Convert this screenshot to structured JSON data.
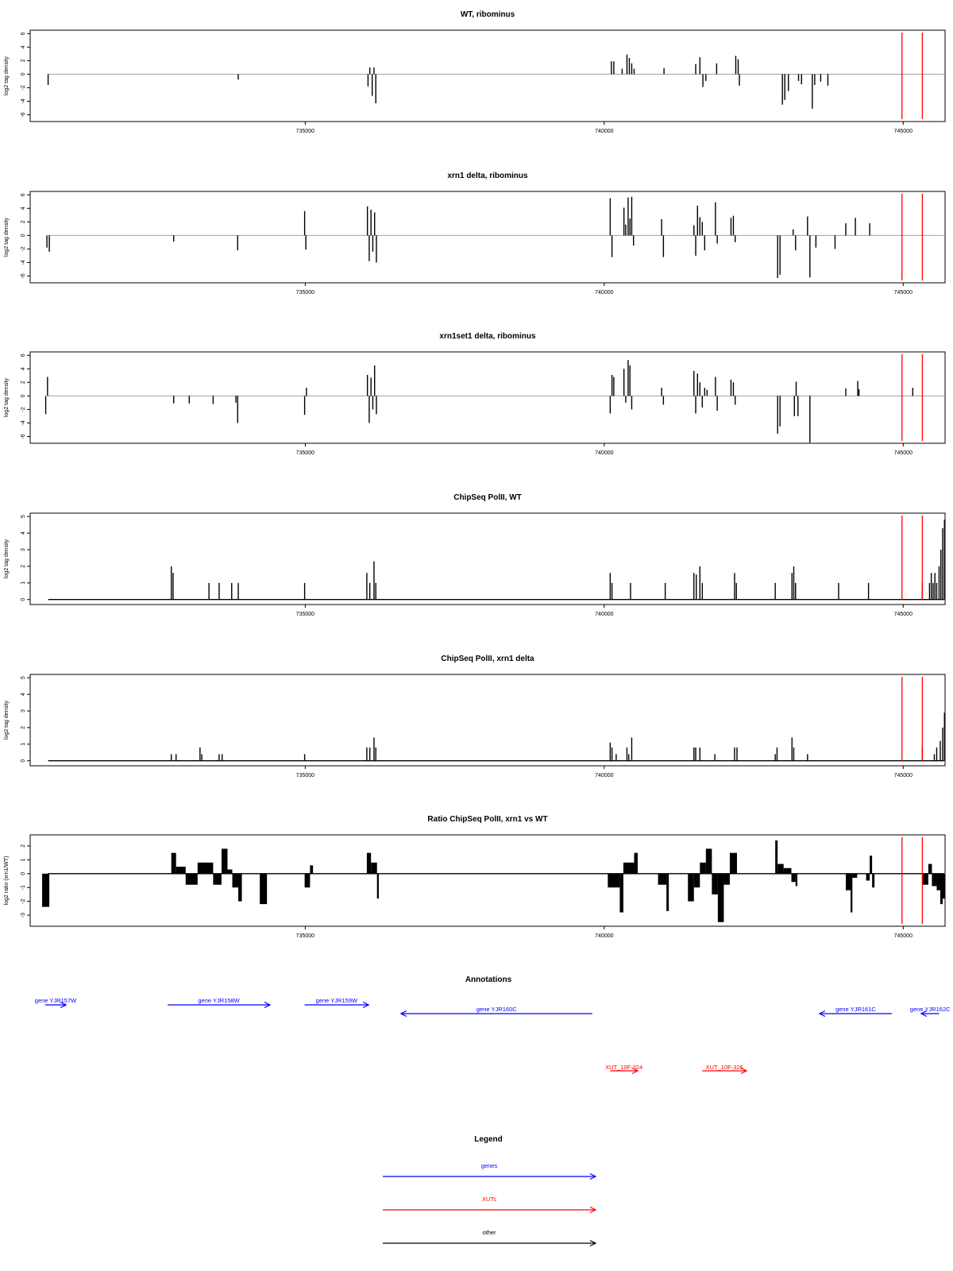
{
  "chart_data": [
    {
      "type": "bar",
      "title": "WT, ribominus",
      "xlabel": "",
      "ylabel": "log2 tag density",
      "xlim": [
        730400,
        745700
      ],
      "ylim": [
        -7,
        6.5
      ],
      "xticks": [
        735000,
        740000,
        745000
      ],
      "yticks": [
        -6,
        -4,
        -2,
        0,
        2,
        4,
        6
      ],
      "markers": [
        744980,
        745320
      ],
      "bars": [
        [
          730700,
          -1.6
        ],
        [
          733880,
          -0.8
        ],
        [
          736050,
          -1.8
        ],
        [
          736080,
          1.0
        ],
        [
          736120,
          -3.2
        ],
        [
          736150,
          1.0
        ],
        [
          736180,
          -4.3
        ],
        [
          740120,
          1.9
        ],
        [
          740160,
          1.9
        ],
        [
          740300,
          0.8
        ],
        [
          740380,
          2.9
        ],
        [
          740420,
          2.4
        ],
        [
          740460,
          1.6
        ],
        [
          740500,
          0.8
        ],
        [
          741000,
          0.9
        ],
        [
          741530,
          1.5
        ],
        [
          741600,
          2.5
        ],
        [
          741650,
          -1.9
        ],
        [
          741700,
          -1.0
        ],
        [
          741880,
          1.6
        ],
        [
          742200,
          2.7
        ],
        [
          742240,
          2.2
        ],
        [
          742260,
          -1.7
        ],
        [
          742980,
          -4.5
        ],
        [
          743020,
          -3.8
        ],
        [
          743080,
          -2.5
        ],
        [
          743250,
          -1.0
        ],
        [
          743300,
          -1.5
        ],
        [
          743480,
          -5.1
        ],
        [
          743520,
          -1.6
        ],
        [
          743620,
          -1.1
        ],
        [
          743740,
          -1.7
        ]
      ]
    },
    {
      "type": "bar",
      "title": "xrn1 delta, ribominus",
      "xlabel": "",
      "ylabel": "log2 tag density",
      "xlim": [
        730400,
        745700
      ],
      "ylim": [
        -7,
        6.5
      ],
      "xticks": [
        735000,
        740000,
        745000
      ],
      "yticks": [
        -6,
        -4,
        -2,
        0,
        2,
        4,
        6
      ],
      "markers": [
        744980,
        745320
      ],
      "bars": [
        [
          730680,
          -1.8
        ],
        [
          730720,
          -2.4
        ],
        [
          732800,
          -0.9
        ],
        [
          733870,
          -2.2
        ],
        [
          734990,
          3.6
        ],
        [
          735010,
          -2.1
        ],
        [
          736040,
          4.3
        ],
        [
          736070,
          -3.8
        ],
        [
          736100,
          3.8
        ],
        [
          736130,
          -2.4
        ],
        [
          736160,
          3.4
        ],
        [
          736190,
          -4.0
        ],
        [
          740100,
          5.5
        ],
        [
          740130,
          -3.2
        ],
        [
          740330,
          4.1
        ],
        [
          740360,
          1.6
        ],
        [
          740400,
          5.6
        ],
        [
          740430,
          2.5
        ],
        [
          740460,
          5.7
        ],
        [
          740490,
          -1.5
        ],
        [
          740960,
          2.4
        ],
        [
          740990,
          -3.2
        ],
        [
          741500,
          1.5
        ],
        [
          741530,
          -3.0
        ],
        [
          741560,
          4.4
        ],
        [
          741600,
          2.7
        ],
        [
          741640,
          2.0
        ],
        [
          741680,
          -2.2
        ],
        [
          741860,
          4.9
        ],
        [
          741890,
          -1.2
        ],
        [
          742120,
          2.6
        ],
        [
          742160,
          2.9
        ],
        [
          742190,
          -1.0
        ],
        [
          742900,
          -6.3
        ],
        [
          742940,
          -5.8
        ],
        [
          743160,
          0.9
        ],
        [
          743200,
          -2.2
        ],
        [
          743400,
          2.8
        ],
        [
          743440,
          -6.2
        ],
        [
          743540,
          -1.8
        ],
        [
          743860,
          -2.0
        ],
        [
          744040,
          1.8
        ],
        [
          744200,
          2.6
        ],
        [
          744440,
          1.8
        ]
      ]
    },
    {
      "type": "bar",
      "title": "xrn1set1 delta, ribominus",
      "xlabel": "",
      "ylabel": "log2 tag density",
      "xlim": [
        730400,
        745700
      ],
      "ylim": [
        -7,
        6.5
      ],
      "xticks": [
        735000,
        740000,
        745000
      ],
      "yticks": [
        -6,
        -4,
        -2,
        0,
        2,
        4,
        6
      ],
      "markers": [
        744980,
        745320
      ],
      "bars": [
        [
          730660,
          -2.7
        ],
        [
          730690,
          2.8
        ],
        [
          732800,
          -1.1
        ],
        [
          733060,
          -1.1
        ],
        [
          733460,
          -1.2
        ],
        [
          733840,
          -1.0
        ],
        [
          733870,
          -4.0
        ],
        [
          734990,
          -2.8
        ],
        [
          735020,
          1.2
        ],
        [
          736040,
          3.1
        ],
        [
          736070,
          -4.0
        ],
        [
          736100,
          2.7
        ],
        [
          736130,
          -2.0
        ],
        [
          736160,
          4.5
        ],
        [
          736190,
          -2.7
        ],
        [
          740100,
          -2.6
        ],
        [
          740130,
          3.1
        ],
        [
          740160,
          2.8
        ],
        [
          740330,
          4.0
        ],
        [
          740360,
          -1.0
        ],
        [
          740400,
          5.3
        ],
        [
          740430,
          4.5
        ],
        [
          740460,
          -2.0
        ],
        [
          740960,
          1.2
        ],
        [
          740990,
          -1.3
        ],
        [
          741500,
          3.7
        ],
        [
          741530,
          -2.6
        ],
        [
          741560,
          3.3
        ],
        [
          741600,
          2.0
        ],
        [
          741640,
          -1.7
        ],
        [
          741680,
          1.2
        ],
        [
          741720,
          0.9
        ],
        [
          741860,
          2.8
        ],
        [
          741890,
          -2.2
        ],
        [
          742120,
          2.4
        ],
        [
          742160,
          2.0
        ],
        [
          742190,
          -1.3
        ],
        [
          742900,
          -5.6
        ],
        [
          742940,
          -4.5
        ],
        [
          743180,
          -3.0
        ],
        [
          743210,
          2.1
        ],
        [
          743240,
          -3.0
        ],
        [
          743440,
          -6.9
        ],
        [
          744040,
          1.1
        ],
        [
          744240,
          2.2
        ],
        [
          744260,
          1.0
        ],
        [
          745160,
          1.2
        ]
      ]
    },
    {
      "type": "bar",
      "title": "ChipSeq PolII, WT",
      "xlabel": "",
      "ylabel": "log2 tag density",
      "xlim": [
        730400,
        745700
      ],
      "ylim": [
        -0.3,
        5.2
      ],
      "xticks": [
        735000,
        740000,
        745000
      ],
      "yticks": [
        0,
        1,
        2,
        3,
        4,
        5
      ],
      "markers": [
        744980,
        745320
      ],
      "bars": [
        [
          732760,
          2.0
        ],
        [
          732790,
          1.6
        ],
        [
          733390,
          1.0
        ],
        [
          733560,
          1.0
        ],
        [
          733770,
          1.0
        ],
        [
          733880,
          1.0
        ],
        [
          734990,
          1.0
        ],
        [
          736030,
          1.6
        ],
        [
          736080,
          1.0
        ],
        [
          736150,
          2.3
        ],
        [
          736180,
          1.0
        ],
        [
          740100,
          1.6
        ],
        [
          740130,
          1.0
        ],
        [
          740440,
          1.0
        ],
        [
          741020,
          1.0
        ],
        [
          741500,
          1.6
        ],
        [
          741540,
          1.5
        ],
        [
          741600,
          2.0
        ],
        [
          741640,
          1.0
        ],
        [
          742180,
          1.6
        ],
        [
          742210,
          1.0
        ],
        [
          742860,
          1.0
        ],
        [
          743140,
          1.6
        ],
        [
          743170,
          2.0
        ],
        [
          743200,
          1.0
        ],
        [
          743920,
          1.0
        ],
        [
          744420,
          1.0
        ],
        [
          745320,
          1.0
        ],
        [
          745440,
          1.0
        ],
        [
          745470,
          1.6
        ],
        [
          745500,
          1.0
        ],
        [
          745530,
          1.6
        ],
        [
          745560,
          1.0
        ],
        [
          745600,
          2.0
        ],
        [
          745630,
          3.0
        ],
        [
          745660,
          4.3
        ],
        [
          745690,
          4.8
        ]
      ]
    },
    {
      "type": "bar",
      "title": "ChipSeq PolII, xrn1 delta",
      "xlabel": "",
      "ylabel": "log2 tag density",
      "xlim": [
        730400,
        745700
      ],
      "ylim": [
        -0.3,
        5.2
      ],
      "xticks": [
        735000,
        740000,
        745000
      ],
      "yticks": [
        0,
        1,
        2,
        3,
        4,
        5
      ],
      "markers": [
        744980,
        745320
      ],
      "bars": [
        [
          732760,
          0.4
        ],
        [
          732840,
          0.4
        ],
        [
          733240,
          0.8
        ],
        [
          733270,
          0.4
        ],
        [
          733560,
          0.4
        ],
        [
          733610,
          0.4
        ],
        [
          734990,
          0.4
        ],
        [
          736030,
          0.8
        ],
        [
          736080,
          0.8
        ],
        [
          736150,
          1.4
        ],
        [
          736180,
          0.8
        ],
        [
          740100,
          1.1
        ],
        [
          740130,
          0.8
        ],
        [
          740200,
          0.4
        ],
        [
          740380,
          0.8
        ],
        [
          740410,
          0.4
        ],
        [
          740460,
          1.4
        ],
        [
          741500,
          0.8
        ],
        [
          741530,
          0.8
        ],
        [
          741600,
          0.8
        ],
        [
          741850,
          0.4
        ],
        [
          742180,
          0.8
        ],
        [
          742220,
          0.8
        ],
        [
          742860,
          0.4
        ],
        [
          742890,
          0.8
        ],
        [
          743140,
          1.4
        ],
        [
          743170,
          0.8
        ],
        [
          743400,
          0.4
        ],
        [
          745320,
          0.8
        ],
        [
          745520,
          0.4
        ],
        [
          745560,
          0.8
        ],
        [
          745620,
          1.2
        ],
        [
          745660,
          2.0
        ],
        [
          745690,
          2.9
        ]
      ]
    },
    {
      "type": "bar",
      "title": "Ratio ChipSeq PolII, xrn1 vs WT",
      "xlabel": "",
      "ylabel": "log2 ratio (xrn1/WT)",
      "xlim": [
        730400,
        745700
      ],
      "ylim": [
        -3.8,
        2.8
      ],
      "xticks": [
        735000,
        740000,
        745000
      ],
      "yticks": [
        -3,
        -2,
        -1,
        0,
        1,
        2
      ],
      "markers": [
        744980,
        745320
      ],
      "segments": [
        [
          730600,
          730720,
          -2.4
        ],
        [
          732760,
          732840,
          1.5
        ],
        [
          732840,
          733000,
          0.5
        ],
        [
          733000,
          733200,
          -0.8
        ],
        [
          733200,
          733460,
          0.8
        ],
        [
          733460,
          733600,
          -0.8
        ],
        [
          733600,
          733700,
          1.8
        ],
        [
          733700,
          733780,
          0.3
        ],
        [
          733780,
          733880,
          -1.0
        ],
        [
          733880,
          733940,
          -2.0
        ],
        [
          734240,
          734360,
          -2.2
        ],
        [
          734990,
          735080,
          -1.0
        ],
        [
          735080,
          735130,
          0.6
        ],
        [
          736030,
          736100,
          1.5
        ],
        [
          736100,
          736200,
          0.8
        ],
        [
          736200,
          736230,
          -1.8
        ],
        [
          740060,
          740260,
          -1.0
        ],
        [
          740260,
          740320,
          -2.8
        ],
        [
          740320,
          740500,
          0.8
        ],
        [
          740500,
          740560,
          1.5
        ],
        [
          740900,
          741040,
          -0.8
        ],
        [
          741040,
          741080,
          -2.7
        ],
        [
          741400,
          741500,
          -2.0
        ],
        [
          741500,
          741600,
          -1.0
        ],
        [
          741600,
          741700,
          0.8
        ],
        [
          741700,
          741800,
          1.8
        ],
        [
          741800,
          741900,
          -1.5
        ],
        [
          741900,
          742000,
          -3.5
        ],
        [
          742000,
          742100,
          -0.8
        ],
        [
          742100,
          742220,
          1.5
        ],
        [
          742860,
          742900,
          2.4
        ],
        [
          742900,
          743000,
          0.7
        ],
        [
          743000,
          743130,
          0.4
        ],
        [
          743130,
          743200,
          -0.6
        ],
        [
          743200,
          743230,
          -0.9
        ],
        [
          744040,
          744120,
          -1.2
        ],
        [
          744120,
          744150,
          -2.8
        ],
        [
          744150,
          744230,
          -0.3
        ],
        [
          744380,
          744440,
          -0.5
        ],
        [
          744440,
          744480,
          1.3
        ],
        [
          744480,
          744520,
          -1.0
        ],
        [
          745320,
          745420,
          -0.8
        ],
        [
          745420,
          745480,
          0.7
        ],
        [
          745480,
          745560,
          -0.9
        ],
        [
          745560,
          745620,
          -1.2
        ],
        [
          745620,
          745660,
          -2.2
        ],
        [
          745660,
          745700,
          -1.8
        ]
      ]
    }
  ],
  "annotations_panel": {
    "title": "Annotations",
    "genes": [
      {
        "label": "gene YJR157W",
        "start": 730650,
        "end": 731000,
        "direction": "right",
        "row": 0
      },
      {
        "label": "gene YJR158W",
        "start": 732700,
        "end": 734410,
        "direction": "right",
        "row": 0
      },
      {
        "label": "gene YJR159W",
        "start": 734990,
        "end": 736060,
        "direction": "right",
        "row": 0
      },
      {
        "label": "gene YJR160C",
        "start": 736600,
        "end": 739800,
        "direction": "left",
        "row": 1
      },
      {
        "label": "gene YJR161C",
        "start": 743600,
        "end": 744810,
        "direction": "left",
        "row": 1
      },
      {
        "label": "gene YJR162C",
        "start": 745300,
        "end": 745600,
        "direction": "left",
        "row": 1
      }
    ],
    "xuts": [
      {
        "label": "XUT_10F-324",
        "start": 740100,
        "end": 740560,
        "direction": "right"
      },
      {
        "label": "XUT_10F-326",
        "start": 741640,
        "end": 742380,
        "direction": "right"
      }
    ]
  },
  "legend_panel": {
    "title": "Legend",
    "items": [
      {
        "label": "genes",
        "color": "#0000ff"
      },
      {
        "label": "XUTs",
        "color": "#ff0000"
      },
      {
        "label": "other",
        "color": "#000000"
      }
    ]
  },
  "colors": {
    "bars": "#000000",
    "baseline": "#a0a0a0",
    "marker": "#ff0000",
    "gene": "#0000ff",
    "xut": "#ff0000"
  }
}
